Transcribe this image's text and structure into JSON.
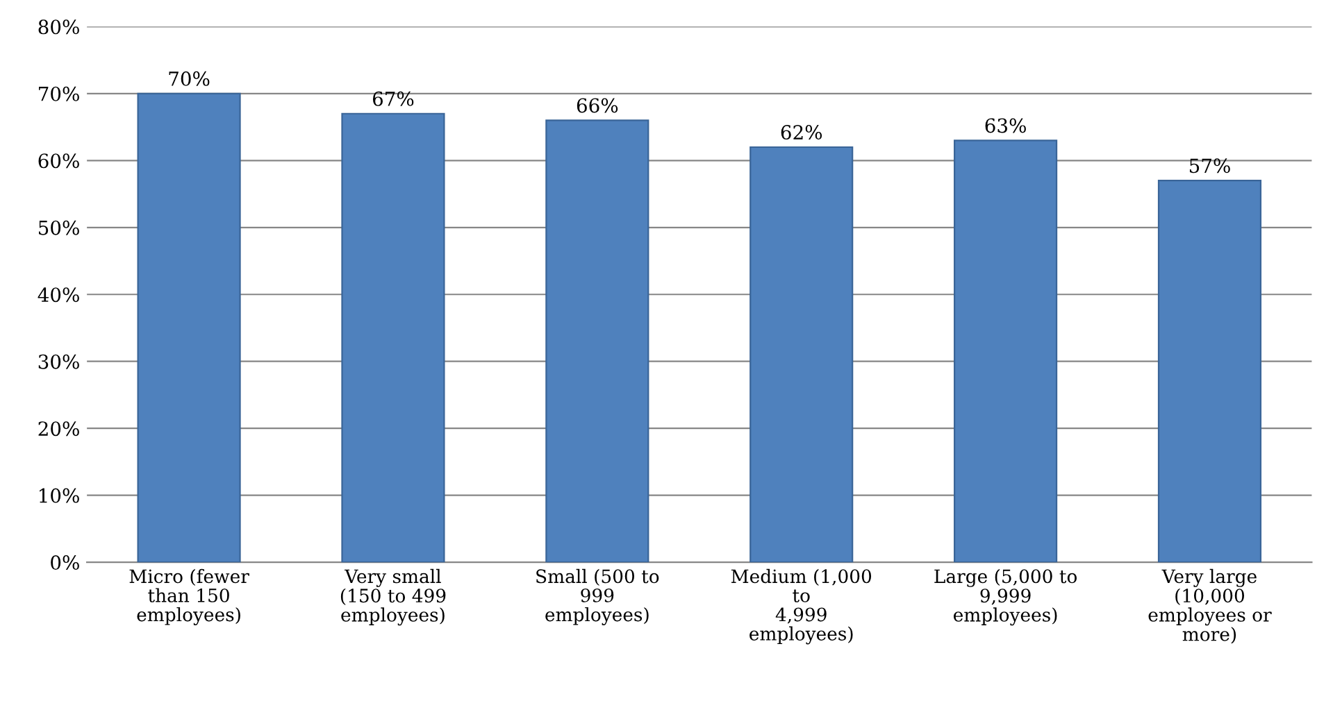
{
  "chart_data": {
    "type": "bar",
    "categories": [
      "Micro (fewer\nthan 150\nemployees)",
      "Very small\n(150 to 499\nemployees)",
      "Small (500 to\n999\nemployees)",
      "Medium (1,000\nto\n4,999\nemployees)",
      "Large (5,000 to\n9,999\nemployees)",
      "Very large\n(10,000\nemployees or\nmore)"
    ],
    "values": [
      70,
      67,
      66,
      62,
      63,
      57
    ],
    "value_labels": [
      "70%",
      "67%",
      "66%",
      "62%",
      "63%",
      "57%"
    ],
    "color": "#4f81bd",
    "ylim": [
      0,
      80
    ],
    "yticks": [
      {
        "value": 0,
        "label": "0%"
      },
      {
        "value": 10,
        "label": "10%"
      },
      {
        "value": 20,
        "label": "20%"
      },
      {
        "value": 30,
        "label": "30%"
      },
      {
        "value": 40,
        "label": "40%"
      },
      {
        "value": 50,
        "label": "50%"
      },
      {
        "value": 60,
        "label": "60%"
      },
      {
        "value": 70,
        "label": "70%"
      },
      {
        "value": 80,
        "label": "80%"
      }
    ],
    "grid": "y"
  }
}
